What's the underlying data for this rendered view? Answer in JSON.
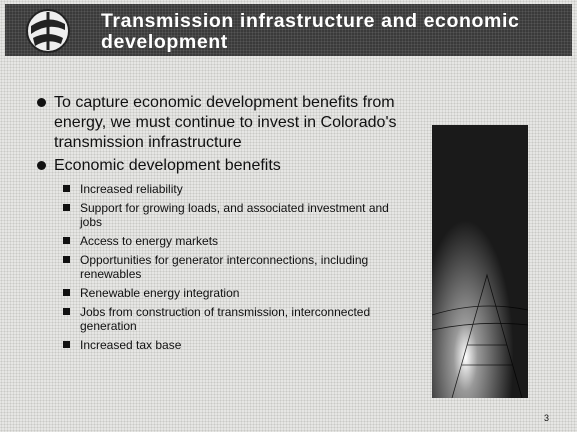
{
  "header": {
    "title": "Transmission infrastructure and economic development"
  },
  "bullets": [
    {
      "text": "To capture economic development benefits from energy, we must continue to invest in Colorado's transmission infrastructure"
    },
    {
      "text": "Economic development benefits",
      "sub_bullets": [
        "Increased reliability",
        "Support for growing loads, and associated investment and jobs",
        "Access to energy markets",
        "Opportunities for generator interconnections, including renewables",
        "Renewable energy integration",
        "Jobs from construction of transmission, interconnected generation",
        "Increased tax base"
      ]
    }
  ],
  "page_number": 3
}
